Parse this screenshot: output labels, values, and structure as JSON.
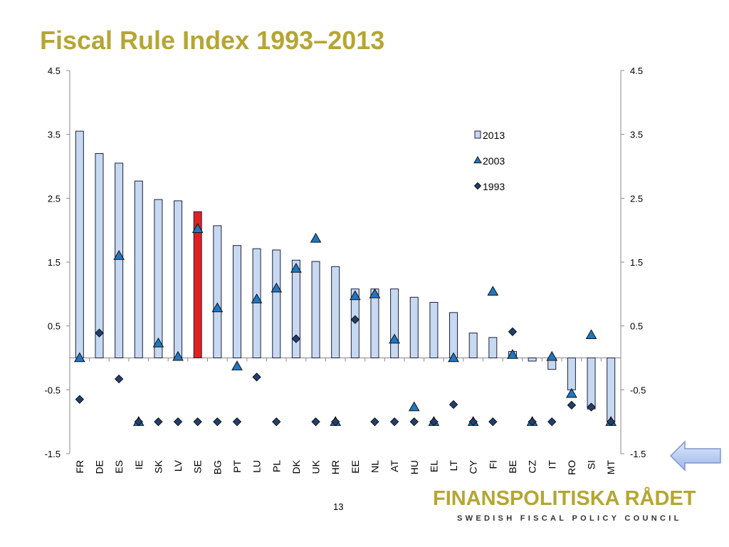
{
  "slide": {
    "title": "Fiscal Rule Index 1993–2013",
    "page_number": "13",
    "logo_name": "FINANSPOLITISKA RÅDET",
    "logo_subtitle": "SWEDISH FISCAL POLICY COUNCIL",
    "nav_icon": "back-arrow-icon"
  },
  "chart_data": {
    "type": "bar",
    "categories": [
      "FR",
      "DE",
      "ES",
      "IE",
      "SK",
      "LV",
      "SE",
      "BG",
      "PT",
      "LU",
      "PL",
      "DK",
      "UK",
      "HR",
      "EE",
      "NL",
      "AT",
      "HU",
      "EL",
      "LT",
      "CY",
      "FI",
      "BE",
      "CZ",
      "IT",
      "RO",
      "SI",
      "MT"
    ],
    "ylim": [
      -1.5,
      4.5
    ],
    "yticks": [
      "4.5",
      "3.5",
      "2.5",
      "1.5",
      "0.5",
      "-0.5",
      "-1.5"
    ],
    "highlight_category": "SE",
    "legend_position": "top-right",
    "grid": false,
    "colors": {
      "bar": "#c6d9f1",
      "bar_border": "#1f1f3f",
      "highlight": "#e02020",
      "triangle": "#1f77c4",
      "diamond": "#1f3f6f"
    },
    "series": [
      {
        "name": "2013",
        "kind": "bar",
        "values": [
          3.55,
          3.2,
          3.05,
          2.77,
          2.48,
          2.46,
          2.29,
          2.07,
          1.76,
          1.71,
          1.69,
          1.53,
          1.51,
          1.43,
          1.08,
          1.08,
          1.08,
          0.95,
          0.87,
          0.71,
          0.39,
          0.32,
          0.1,
          -0.05,
          -0.18,
          -0.5,
          -0.8,
          -1.0
        ]
      },
      {
        "name": "2003",
        "kind": "triangle",
        "values": [
          0.0,
          null,
          1.6,
          -1.0,
          0.23,
          0.02,
          2.02,
          0.78,
          -0.13,
          0.92,
          1.09,
          1.4,
          1.87,
          -1.0,
          0.97,
          1.0,
          0.29,
          -0.77,
          -1.0,
          0.0,
          -1.0,
          1.04,
          0.05,
          -1.0,
          0.02,
          -0.56,
          0.36,
          -1.0
        ]
      },
      {
        "name": "1993",
        "kind": "diamond",
        "values": [
          -0.65,
          0.39,
          -0.33,
          -1.0,
          -1.0,
          -1.0,
          -1.0,
          -1.0,
          -1.0,
          -0.3,
          -1.0,
          0.3,
          -1.0,
          -1.0,
          0.6,
          -1.0,
          -1.0,
          -1.0,
          -1.0,
          -0.73,
          -1.0,
          -1.0,
          0.41,
          -1.0,
          -1.0,
          -0.74,
          -0.77,
          -1.0
        ]
      }
    ]
  }
}
